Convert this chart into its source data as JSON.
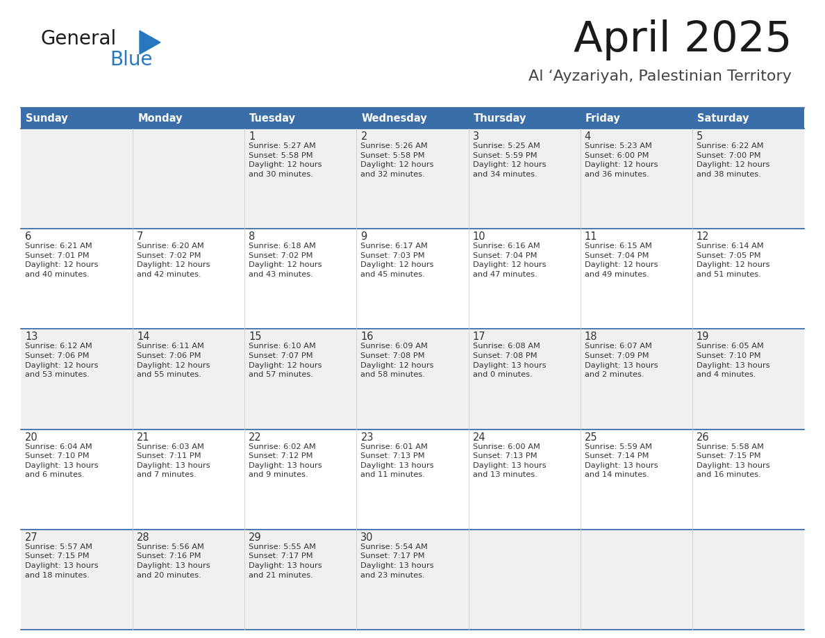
{
  "title": "April 2025",
  "subtitle": "Al ‘Ayzariyah, Palestinian Territory",
  "days_of_week": [
    "Sunday",
    "Monday",
    "Tuesday",
    "Wednesday",
    "Thursday",
    "Friday",
    "Saturday"
  ],
  "header_bg": "#3a6ea8",
  "header_text": "#ffffff",
  "row_bg_odd": "#f0f0f0",
  "row_bg_even": "#ffffff",
  "cell_text": "#333333",
  "day_num_color": "#333333",
  "border_color": "#3a6ea8",
  "logo_general_color": "#1a1a1a",
  "logo_blue_color": "#2878c0",
  "weeks": [
    [
      {
        "day": "",
        "info": ""
      },
      {
        "day": "",
        "info": ""
      },
      {
        "day": "1",
        "info": "Sunrise: 5:27 AM\nSunset: 5:58 PM\nDaylight: 12 hours\nand 30 minutes."
      },
      {
        "day": "2",
        "info": "Sunrise: 5:26 AM\nSunset: 5:58 PM\nDaylight: 12 hours\nand 32 minutes."
      },
      {
        "day": "3",
        "info": "Sunrise: 5:25 AM\nSunset: 5:59 PM\nDaylight: 12 hours\nand 34 minutes."
      },
      {
        "day": "4",
        "info": "Sunrise: 5:23 AM\nSunset: 6:00 PM\nDaylight: 12 hours\nand 36 minutes."
      },
      {
        "day": "5",
        "info": "Sunrise: 6:22 AM\nSunset: 7:00 PM\nDaylight: 12 hours\nand 38 minutes."
      }
    ],
    [
      {
        "day": "6",
        "info": "Sunrise: 6:21 AM\nSunset: 7:01 PM\nDaylight: 12 hours\nand 40 minutes."
      },
      {
        "day": "7",
        "info": "Sunrise: 6:20 AM\nSunset: 7:02 PM\nDaylight: 12 hours\nand 42 minutes."
      },
      {
        "day": "8",
        "info": "Sunrise: 6:18 AM\nSunset: 7:02 PM\nDaylight: 12 hours\nand 43 minutes."
      },
      {
        "day": "9",
        "info": "Sunrise: 6:17 AM\nSunset: 7:03 PM\nDaylight: 12 hours\nand 45 minutes."
      },
      {
        "day": "10",
        "info": "Sunrise: 6:16 AM\nSunset: 7:04 PM\nDaylight: 12 hours\nand 47 minutes."
      },
      {
        "day": "11",
        "info": "Sunrise: 6:15 AM\nSunset: 7:04 PM\nDaylight: 12 hours\nand 49 minutes."
      },
      {
        "day": "12",
        "info": "Sunrise: 6:14 AM\nSunset: 7:05 PM\nDaylight: 12 hours\nand 51 minutes."
      }
    ],
    [
      {
        "day": "13",
        "info": "Sunrise: 6:12 AM\nSunset: 7:06 PM\nDaylight: 12 hours\nand 53 minutes."
      },
      {
        "day": "14",
        "info": "Sunrise: 6:11 AM\nSunset: 7:06 PM\nDaylight: 12 hours\nand 55 minutes."
      },
      {
        "day": "15",
        "info": "Sunrise: 6:10 AM\nSunset: 7:07 PM\nDaylight: 12 hours\nand 57 minutes."
      },
      {
        "day": "16",
        "info": "Sunrise: 6:09 AM\nSunset: 7:08 PM\nDaylight: 12 hours\nand 58 minutes."
      },
      {
        "day": "17",
        "info": "Sunrise: 6:08 AM\nSunset: 7:08 PM\nDaylight: 13 hours\nand 0 minutes."
      },
      {
        "day": "18",
        "info": "Sunrise: 6:07 AM\nSunset: 7:09 PM\nDaylight: 13 hours\nand 2 minutes."
      },
      {
        "day": "19",
        "info": "Sunrise: 6:05 AM\nSunset: 7:10 PM\nDaylight: 13 hours\nand 4 minutes."
      }
    ],
    [
      {
        "day": "20",
        "info": "Sunrise: 6:04 AM\nSunset: 7:10 PM\nDaylight: 13 hours\nand 6 minutes."
      },
      {
        "day": "21",
        "info": "Sunrise: 6:03 AM\nSunset: 7:11 PM\nDaylight: 13 hours\nand 7 minutes."
      },
      {
        "day": "22",
        "info": "Sunrise: 6:02 AM\nSunset: 7:12 PM\nDaylight: 13 hours\nand 9 minutes."
      },
      {
        "day": "23",
        "info": "Sunrise: 6:01 AM\nSunset: 7:13 PM\nDaylight: 13 hours\nand 11 minutes."
      },
      {
        "day": "24",
        "info": "Sunrise: 6:00 AM\nSunset: 7:13 PM\nDaylight: 13 hours\nand 13 minutes."
      },
      {
        "day": "25",
        "info": "Sunrise: 5:59 AM\nSunset: 7:14 PM\nDaylight: 13 hours\nand 14 minutes."
      },
      {
        "day": "26",
        "info": "Sunrise: 5:58 AM\nSunset: 7:15 PM\nDaylight: 13 hours\nand 16 minutes."
      }
    ],
    [
      {
        "day": "27",
        "info": "Sunrise: 5:57 AM\nSunset: 7:15 PM\nDaylight: 13 hours\nand 18 minutes."
      },
      {
        "day": "28",
        "info": "Sunrise: 5:56 AM\nSunset: 7:16 PM\nDaylight: 13 hours\nand 20 minutes."
      },
      {
        "day": "29",
        "info": "Sunrise: 5:55 AM\nSunset: 7:17 PM\nDaylight: 13 hours\nand 21 minutes."
      },
      {
        "day": "30",
        "info": "Sunrise: 5:54 AM\nSunset: 7:17 PM\nDaylight: 13 hours\nand 23 minutes."
      },
      {
        "day": "",
        "info": ""
      },
      {
        "day": "",
        "info": ""
      },
      {
        "day": "",
        "info": ""
      }
    ]
  ]
}
